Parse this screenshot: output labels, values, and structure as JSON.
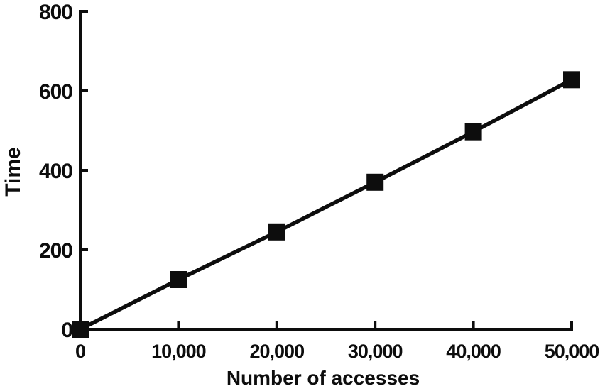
{
  "figure": {
    "background": "#ffffff",
    "ink_color": "#0d0d0d"
  },
  "chart_data": {
    "type": "line",
    "title": "",
    "xlabel": "Number of accesses",
    "ylabel": "Time",
    "x": [
      0,
      10000,
      20000,
      30000,
      40000,
      50000
    ],
    "series": [
      {
        "name": "Time",
        "values": [
          0,
          125,
          245,
          370,
          497,
          628
        ],
        "color": "#0d0d0d",
        "marker": "square"
      }
    ],
    "xlim": [
      0,
      50000
    ],
    "ylim": [
      0,
      800
    ],
    "x_ticks": {
      "values": [
        0,
        10000,
        20000,
        30000,
        40000,
        50000
      ],
      "labels": [
        "0",
        "10,000",
        "20,000",
        "30,000",
        "40,000",
        "50,000"
      ]
    },
    "y_ticks": {
      "values": [
        0,
        200,
        400,
        600,
        800
      ],
      "labels": [
        "0",
        "200",
        "400",
        "600",
        "800"
      ]
    },
    "grid": false,
    "legend": "none",
    "tick_direction": "in",
    "line_width": 5.5,
    "marker_size": 24
  }
}
